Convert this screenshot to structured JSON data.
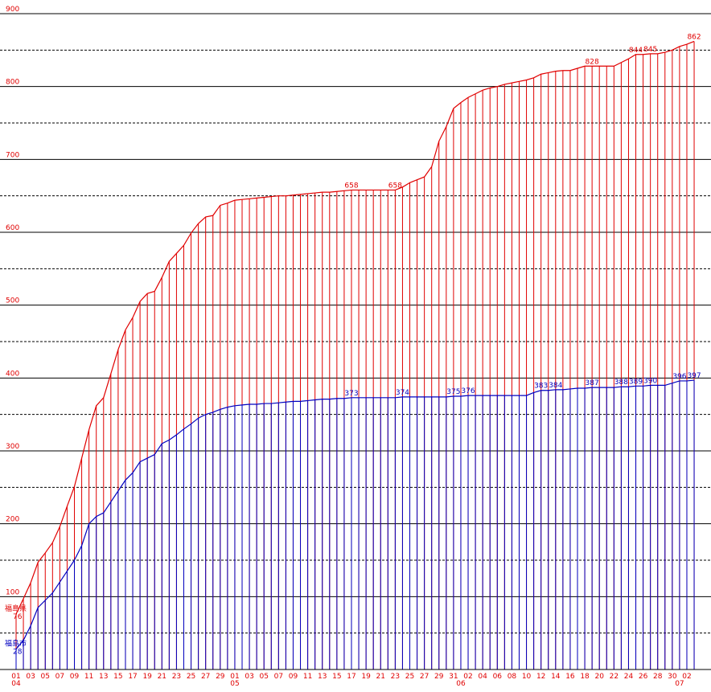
{
  "chart_data": {
    "type": "cumulative-line-bars",
    "categories": [
      "01",
      null,
      "03",
      null,
      "05",
      null,
      "07",
      null,
      "09",
      null,
      "11",
      null,
      "13",
      null,
      "15",
      null,
      "17",
      null,
      "19",
      null,
      "21",
      null,
      "23",
      null,
      "25",
      null,
      "27",
      null,
      "29",
      null,
      "01",
      null,
      "03",
      null,
      "05",
      null,
      "07",
      null,
      "09",
      null,
      "11",
      null,
      "13",
      null,
      "15",
      null,
      "17",
      null,
      "19",
      null,
      "21",
      null,
      "23",
      null,
      "25",
      null,
      "27",
      null,
      "29",
      null,
      "31",
      null,
      "02",
      null,
      "04",
      null,
      "06",
      null,
      "08",
      null,
      "10",
      null,
      "12",
      null,
      "14",
      null,
      "16",
      null,
      "18",
      null,
      "20",
      null,
      "22",
      null,
      "24",
      null,
      "26",
      null,
      "28",
      null,
      "30",
      null,
      "02",
      null
    ],
    "months": [
      "04",
      null,
      null,
      null,
      null,
      null,
      null,
      null,
      null,
      null,
      null,
      null,
      null,
      null,
      null,
      null,
      null,
      null,
      null,
      null,
      null,
      null,
      null,
      null,
      null,
      null,
      null,
      null,
      null,
      null,
      "05",
      null,
      null,
      null,
      null,
      null,
      null,
      null,
      null,
      null,
      null,
      null,
      null,
      null,
      null,
      null,
      null,
      null,
      null,
      null,
      null,
      null,
      null,
      null,
      null,
      null,
      null,
      null,
      null,
      null,
      null,
      "06",
      null,
      null,
      null,
      null,
      null,
      null,
      null,
      null,
      null,
      null,
      null,
      null,
      null,
      null,
      null,
      null,
      null,
      null,
      null,
      null,
      null,
      null,
      null,
      null,
      null,
      null,
      null,
      null,
      null,
      "07",
      null,
      null
    ],
    "series": [
      {
        "name": "福島県",
        "color": "#e00000",
        "values": [
          76,
          97,
          119,
          147,
          160,
          174,
          196,
          224,
          251,
          290,
          329,
          362,
          373,
          406,
          439,
          466,
          483,
          505,
          516,
          519,
          538,
          560,
          571,
          582,
          599,
          612,
          621,
          623,
          637,
          640,
          644,
          645,
          646,
          647,
          648,
          649,
          650,
          650,
          651,
          652,
          653,
          654,
          655,
          655,
          656,
          657,
          658,
          658,
          658,
          658,
          658,
          658,
          658,
          662,
          668,
          672,
          676,
          690,
          725,
          745,
          770,
          778,
          785,
          790,
          795,
          798,
          800,
          803,
          805,
          807,
          809,
          812,
          817,
          819,
          821,
          822,
          822,
          825,
          828,
          828,
          828,
          828,
          828,
          833,
          838,
          844,
          844,
          845,
          845,
          847,
          850,
          855,
          858,
          862
        ],
        "value_labels": [
          "76",
          null,
          null,
          null,
          null,
          null,
          null,
          null,
          null,
          null,
          null,
          null,
          null,
          null,
          null,
          null,
          null,
          null,
          null,
          null,
          null,
          null,
          null,
          null,
          null,
          null,
          null,
          null,
          null,
          null,
          null,
          null,
          null,
          null,
          null,
          null,
          null,
          null,
          null,
          null,
          null,
          null,
          null,
          null,
          null,
          null,
          "658",
          null,
          null,
          null,
          null,
          null,
          "658",
          null,
          null,
          null,
          null,
          null,
          null,
          null,
          null,
          null,
          null,
          null,
          null,
          null,
          null,
          null,
          null,
          null,
          null,
          null,
          null,
          null,
          null,
          null,
          null,
          null,
          null,
          "828",
          null,
          null,
          null,
          null,
          null,
          "844",
          null,
          "845",
          null,
          null,
          null,
          null,
          null,
          "862"
        ]
      },
      {
        "name": "福島市",
        "color": "#0000c0",
        "values": [
          28,
          40,
          60,
          85,
          95,
          105,
          120,
          135,
          150,
          170,
          200,
          210,
          215,
          230,
          245,
          260,
          270,
          285,
          290,
          295,
          310,
          315,
          322,
          330,
          337,
          345,
          350,
          353,
          357,
          360,
          362,
          363,
          364,
          364,
          365,
          365,
          366,
          367,
          368,
          368,
          369,
          370,
          371,
          371,
          372,
          372,
          373,
          373,
          373,
          373,
          373,
          373,
          373,
          374,
          374,
          374,
          374,
          374,
          374,
          374,
          375,
          375,
          376,
          376,
          376,
          376,
          376,
          376,
          376,
          376,
          376,
          380,
          383,
          383,
          384,
          384,
          385,
          386,
          386,
          387,
          387,
          387,
          387,
          388,
          388,
          389,
          389,
          390,
          390,
          390,
          393,
          396,
          396,
          397
        ],
        "value_labels": [
          "28",
          null,
          null,
          null,
          null,
          null,
          null,
          null,
          null,
          null,
          null,
          null,
          null,
          null,
          null,
          null,
          null,
          null,
          null,
          null,
          null,
          null,
          null,
          null,
          null,
          null,
          null,
          null,
          null,
          null,
          null,
          null,
          null,
          null,
          null,
          null,
          null,
          null,
          null,
          null,
          null,
          null,
          null,
          null,
          null,
          null,
          "373",
          null,
          null,
          null,
          null,
          null,
          null,
          "374",
          null,
          null,
          null,
          null,
          null,
          null,
          "375",
          null,
          "376",
          null,
          null,
          null,
          null,
          null,
          null,
          null,
          null,
          null,
          "383",
          null,
          "384",
          null,
          null,
          null,
          null,
          "387",
          null,
          null,
          null,
          "388",
          null,
          "389",
          null,
          "390",
          null,
          null,
          null,
          "396",
          null,
          "397"
        ]
      }
    ],
    "ylim": [
      0,
      900
    ],
    "yticks": [
      100,
      200,
      300,
      400,
      500,
      600,
      700,
      800,
      900
    ],
    "minor_yticks": [
      50,
      150,
      250,
      350,
      450,
      550,
      650,
      750,
      850
    ],
    "grid": true,
    "axis_label_color": "#e00000"
  }
}
